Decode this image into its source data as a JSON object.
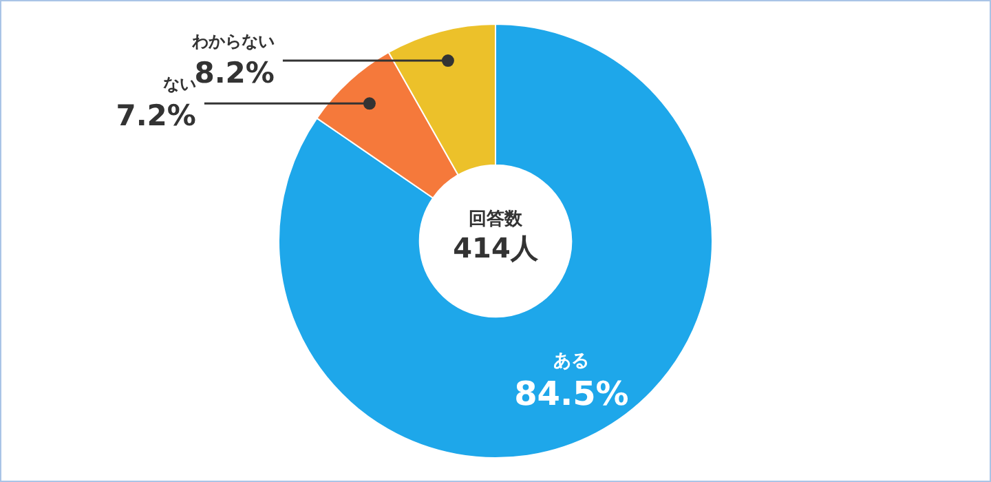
{
  "chart_data": {
    "type": "donut",
    "categories": [
      "ある",
      "ない",
      "わからない"
    ],
    "values": [
      84.5,
      7.2,
      8.2
    ],
    "colors": [
      "#1ea7ea",
      "#f5793b",
      "#ecc12a"
    ],
    "value_labels": [
      "84.5%",
      "7.2%",
      "8.2%"
    ],
    "annotations": [
      "回答数",
      "414人"
    ],
    "legend": false
  }
}
